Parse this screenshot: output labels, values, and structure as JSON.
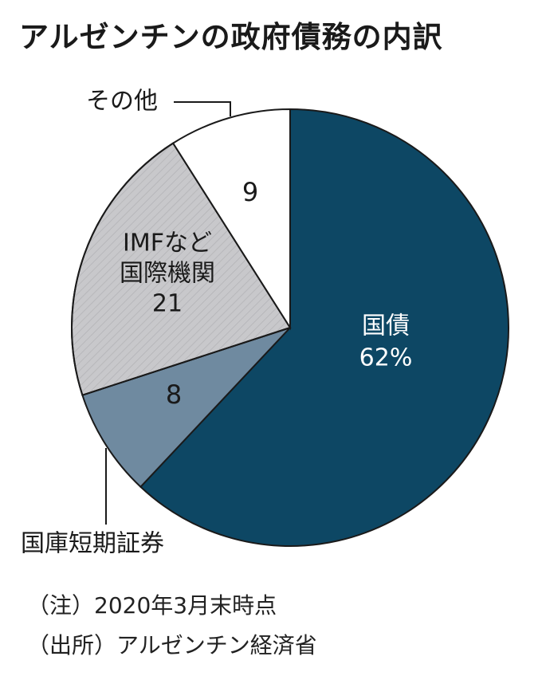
{
  "title": "アルゼンチンの政府債務の内訳",
  "chart_data": {
    "type": "pie",
    "title": "アルゼンチンの政府債務の内訳",
    "unit": "%",
    "slices": [
      {
        "name": "国債",
        "value": 62,
        "label_lines": [
          "国債",
          "62%"
        ],
        "color": "#0d4764"
      },
      {
        "name": "国庫短期証券",
        "value": 8,
        "label_lines": [
          "8"
        ],
        "color": "#6f8aa0"
      },
      {
        "name": "IMFなど国際機関",
        "value": 21,
        "label_lines": [
          "IMFなど",
          "国際機関",
          "21"
        ],
        "color": "#c8c8cb"
      },
      {
        "name": "その他",
        "value": 9,
        "label_lines": [
          "9"
        ],
        "color": "#ffffff"
      }
    ],
    "callouts": [
      "その他",
      "国庫短期証券"
    ]
  },
  "notes": {
    "date": "（注）2020年3月末時点",
    "source": "（出所）アルゼンチン経済省"
  }
}
